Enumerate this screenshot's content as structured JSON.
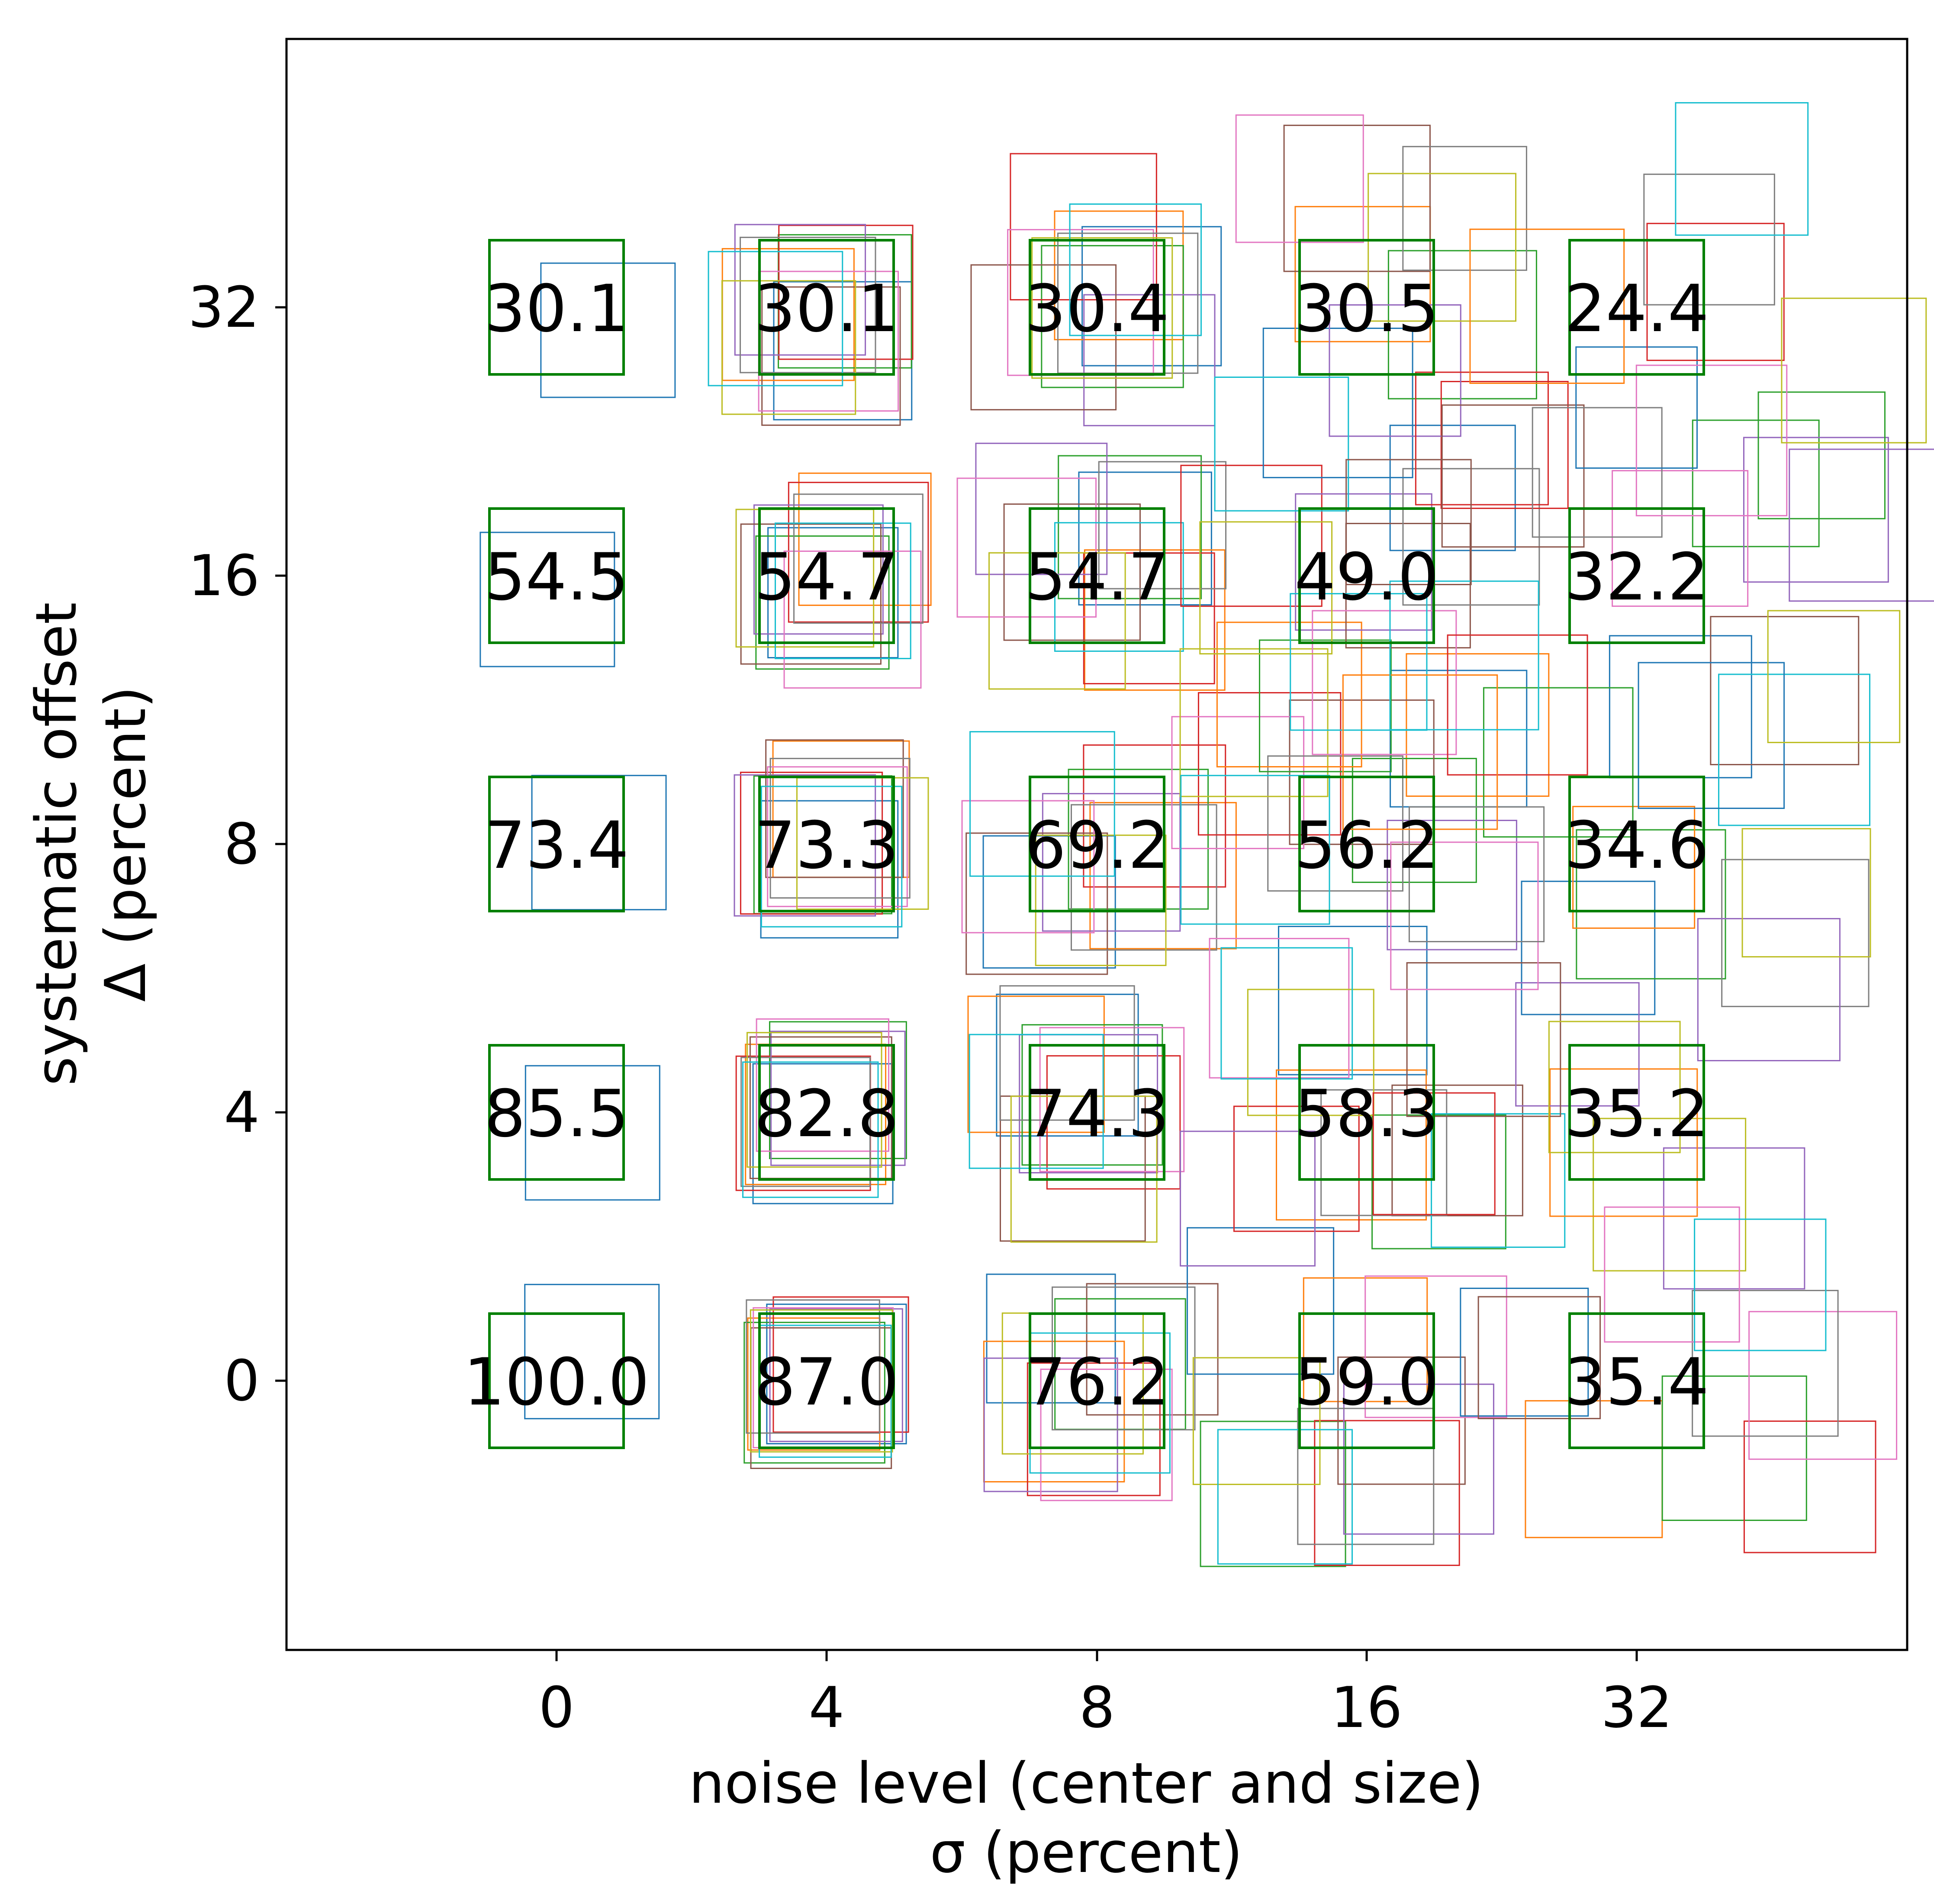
{
  "chart_data": {
    "type": "heatmap",
    "xlabel": [
      "noise level (center and size)",
      "σ (percent)"
    ],
    "ylabel": [
      "systematic offset",
      "Δ (percent)"
    ],
    "x_ticks": [
      "0",
      "4",
      "8",
      "16",
      "32"
    ],
    "y_ticks": [
      "0",
      "4",
      "8",
      "16",
      "32"
    ],
    "cells": [
      [
        100.0,
        85.5,
        73.4,
        54.5,
        30.1
      ],
      [
        87.0,
        82.8,
        73.3,
        54.7,
        30.1
      ],
      [
        76.2,
        74.3,
        69.2,
        54.7,
        30.4
      ],
      [
        59.0,
        58.3,
        56.2,
        49.0,
        30.5
      ],
      [
        35.4,
        35.2,
        34.6,
        32.2,
        24.4
      ]
    ],
    "cell_labels": [
      [
        "100.0",
        "85.5",
        "73.4",
        "54.5",
        "30.1"
      ],
      [
        "87.0",
        "82.8",
        "73.3",
        "54.7",
        "30.1"
      ],
      [
        "76.2",
        "74.3",
        "69.2",
        "54.7",
        "30.4"
      ],
      [
        "59.0",
        "58.3",
        "56.2",
        "49.0",
        "30.5"
      ],
      [
        "35.4",
        "35.2",
        "34.6",
        "32.2",
        "24.4"
      ]
    ],
    "reference_box_color": "#008000",
    "jitter_colors": [
      "#1f77b4",
      "#ff7f0e",
      "#2ca02c",
      "#d62728",
      "#9467bd",
      "#8c564b",
      "#e377c2",
      "#7f7f7f",
      "#bcbd22",
      "#17becf"
    ],
    "grid": false,
    "legend": "none"
  }
}
